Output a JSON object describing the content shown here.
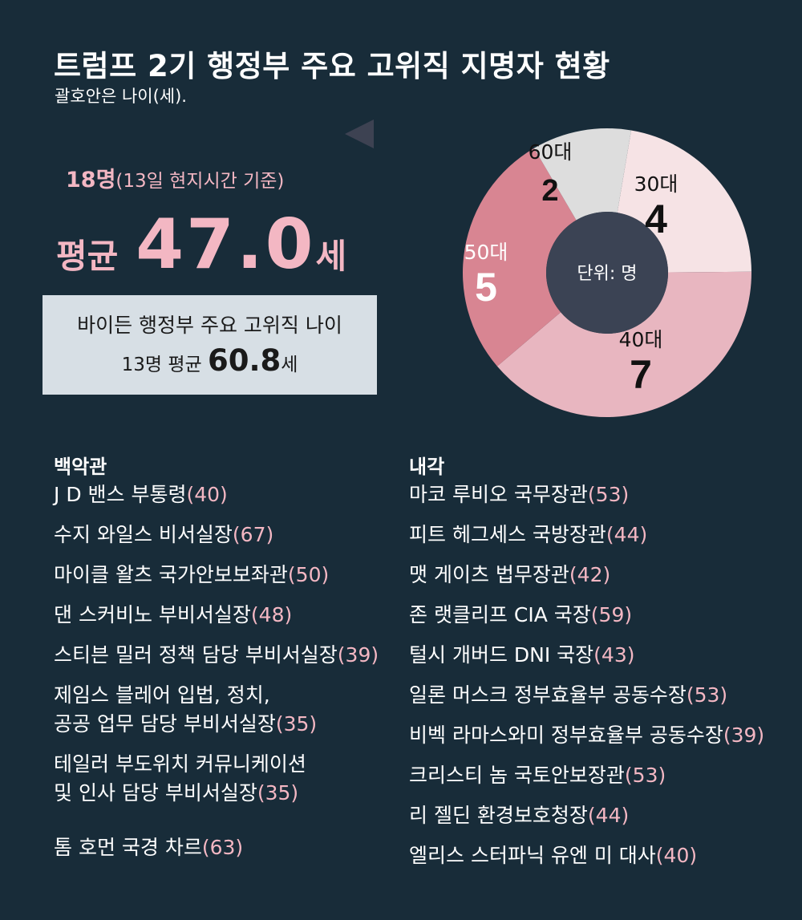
{
  "title": "트럼프 2기 행정부 주요 고위직 지명자 현황",
  "subtitle": "괄호안은 나이(세).",
  "summary": {
    "count": "18명",
    "count_note": "(13일 현지시간 기준)",
    "avg_label": "평균",
    "avg_value": "47.0",
    "avg_unit": "세"
  },
  "biden": {
    "line1": "바이든 행정부 주요 고위직 나이",
    "line2_prefix": "13명 평균",
    "line2_value": "60.8",
    "line2_unit": "세"
  },
  "chart_data": {
    "type": "pie",
    "center_label": "단위: 명",
    "categories": [
      "30대",
      "40대",
      "50대",
      "60대"
    ],
    "values": [
      4,
      7,
      5,
      2
    ],
    "colors": [
      "#f6e3e5",
      "#e8b6c0",
      "#d88592",
      "#dddddd"
    ],
    "hole_color": "#3b4354"
  },
  "white_house": {
    "heading": "백악관",
    "items": [
      {
        "text": "J D 밴스 부통령",
        "age": "(40)"
      },
      {
        "text": "수지 와일스 비서실장",
        "age": "(67)"
      },
      {
        "text": "마이클 왈츠 국가안보보좌관",
        "age": "(50)"
      },
      {
        "text": "댄 스커비노 부비서실장",
        "age": "(48)"
      },
      {
        "text": "스티븐 밀러 정책 담당 부비서실장",
        "age": "(39)"
      },
      {
        "text": "제임스 블레어 입법, 정치,",
        "age": ""
      },
      {
        "text": "공공 업무 담당 부비서실장",
        "age": "(35)"
      },
      {
        "text": "테일러 부도위치 커뮤니케이션",
        "age": ""
      },
      {
        "text": "및 인사 담당 부비서실장",
        "age": "(35)"
      },
      {
        "text": "톰 호먼 국경 차르",
        "age": "(63)"
      }
    ]
  },
  "cabinet": {
    "heading": "내각",
    "items": [
      {
        "text": "마코 루비오 국무장관",
        "age": "(53)"
      },
      {
        "text": "피트 헤그세스 국방장관",
        "age": "(44)"
      },
      {
        "text": "맷 게이츠 법무장관",
        "age": "(42)"
      },
      {
        "text": "존 랫클리프 CIA 국장",
        "age": "(59)"
      },
      {
        "text": "털시 개버드 DNI 국장",
        "age": "(43)"
      },
      {
        "text": "일론 머스크 정부효율부 공동수장",
        "age": "(53)"
      },
      {
        "text": "비벡 라마스와미 정부효율부 공동수장",
        "age": "(39)"
      },
      {
        "text": "크리스티 놈 국토안보장관",
        "age": "(53)"
      },
      {
        "text": "리 젤딘 환경보호청장",
        "age": "(44)"
      },
      {
        "text": "엘리스 스터파닉 유엔 미 대사",
        "age": "(40)"
      }
    ]
  }
}
